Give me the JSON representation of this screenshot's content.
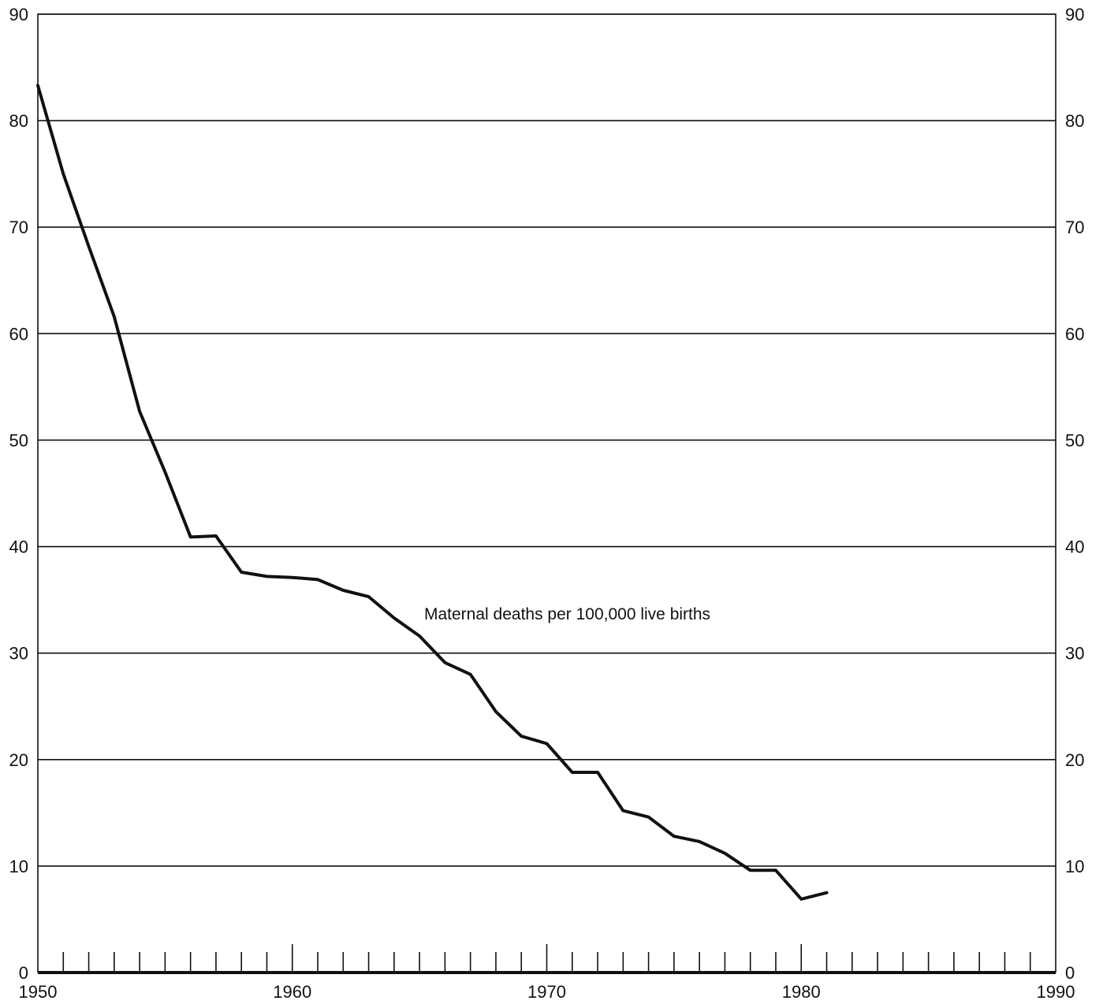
{
  "chart_data": {
    "type": "line",
    "title": "",
    "xlabel": "",
    "ylabel": "",
    "xlim": [
      1950,
      1990
    ],
    "ylim": [
      0,
      90
    ],
    "grid": true,
    "x_ticks": [
      "1950",
      "1960",
      "1970",
      "1980",
      "1990"
    ],
    "y_ticks": [
      "0",
      "10",
      "20",
      "30",
      "40",
      "50",
      "60",
      "70",
      "80",
      "90"
    ],
    "annotation": "Maternal deaths per 100,000 live births",
    "series": [
      {
        "x": [
          1950,
          1951,
          1952,
          1953,
          1954,
          1955,
          1956,
          1957,
          1958,
          1959,
          1960,
          1961,
          1962,
          1963,
          1964,
          1965,
          1966,
          1967,
          1968,
          1969,
          1970,
          1971,
          1972,
          1973,
          1974,
          1975,
          1976,
          1977,
          1978,
          1979,
          1980,
          1981
        ],
        "y": [
          83.3,
          75.0,
          68.2,
          61.6,
          52.7,
          47.0,
          40.9,
          41.0,
          37.6,
          37.2,
          37.1,
          36.9,
          35.9,
          35.3,
          33.3,
          31.6,
          29.1,
          28.0,
          24.5,
          22.2,
          21.5,
          18.8,
          18.8,
          15.2,
          14.6,
          12.8,
          12.3,
          11.2,
          9.6,
          9.6,
          6.9,
          7.5
        ]
      }
    ]
  }
}
